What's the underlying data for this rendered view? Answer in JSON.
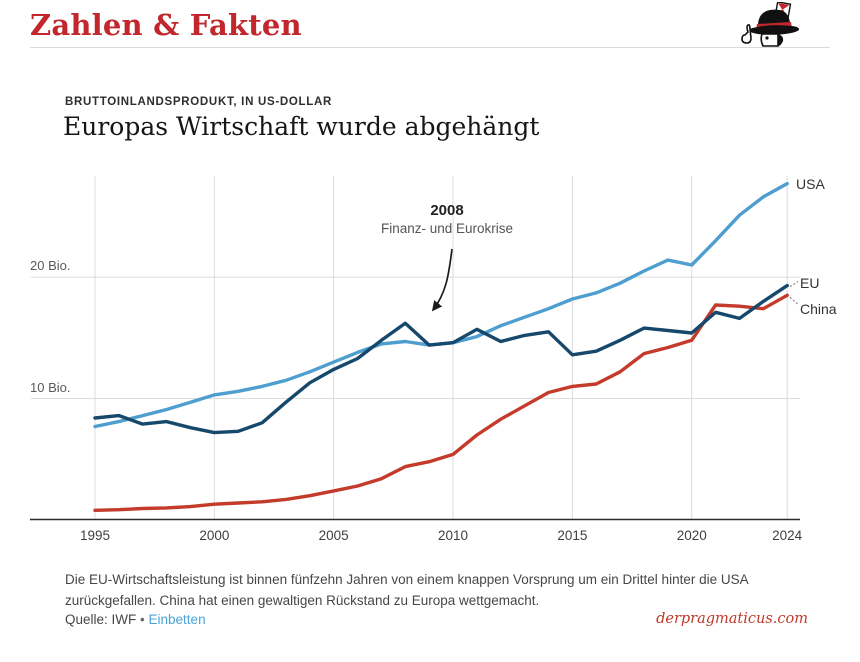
{
  "header": {
    "brand": "Zahlen & Fakten",
    "logo": "pragmaticus-mascot"
  },
  "chart": {
    "kicker": "BRUTTOINLANDSPRODUKT, IN US-DOLLAR",
    "title": "Europas Wirtschaft wurde abgehängt",
    "annotation": {
      "year": "2008",
      "text": "Finanz- und Eurokrise"
    }
  },
  "chart_data": {
    "type": "line",
    "title": "Europas Wirtschaft wurde abgehängt",
    "subtitle": "Bruttoinlandsprodukt, in US-Dollar",
    "unit": "Bio. US-Dollar",
    "x": [
      1995,
      1996,
      1997,
      1998,
      1999,
      2000,
      2001,
      2002,
      2003,
      2004,
      2005,
      2006,
      2007,
      2008,
      2009,
      2010,
      2011,
      2012,
      2013,
      2014,
      2015,
      2016,
      2017,
      2018,
      2019,
      2020,
      2021,
      2022,
      2023,
      2024
    ],
    "series": [
      {
        "name": "USA",
        "color": "#4E9FD0",
        "values": [
          7.7,
          8.1,
          8.6,
          9.1,
          9.7,
          10.3,
          10.6,
          11.0,
          11.5,
          12.2,
          13.0,
          13.8,
          14.5,
          14.7,
          14.4,
          14.6,
          15.1,
          16.0,
          16.7,
          17.4,
          18.2,
          18.7,
          19.5,
          20.5,
          21.4,
          21.0,
          23.0,
          25.1,
          26.6,
          27.7
        ]
      },
      {
        "name": "China",
        "color": "#C43A2B",
        "values": [
          0.8,
          0.85,
          0.95,
          1.0,
          1.1,
          1.3,
          1.4,
          1.5,
          1.7,
          2.0,
          2.4,
          2.8,
          3.4,
          4.4,
          4.8,
          5.4,
          7.0,
          8.3,
          9.4,
          10.5,
          11.0,
          11.2,
          12.2,
          13.7,
          14.2,
          14.8,
          17.7,
          17.6,
          17.4,
          18.5
        ]
      },
      {
        "name": "EU",
        "color": "#16486C",
        "values": [
          8.4,
          8.6,
          7.9,
          8.1,
          7.6,
          7.2,
          7.3,
          8.0,
          9.7,
          11.3,
          12.4,
          13.3,
          14.8,
          16.2,
          14.4,
          14.6,
          15.7,
          14.7,
          15.2,
          15.5,
          13.6,
          13.9,
          14.8,
          15.8,
          15.6,
          15.4,
          17.1,
          16.6,
          18.0,
          19.3
        ]
      }
    ],
    "ylim": [
      0,
      28.4
    ],
    "yticks": [
      {
        "value": 10,
        "label": "10 Bio."
      },
      {
        "value": 20,
        "label": "20 Bio."
      }
    ],
    "xticks": [
      1995,
      2000,
      2005,
      2010,
      2015,
      2020,
      2024
    ],
    "grid": "light gray, vertical at xticks, horizontal at yticks",
    "legend_position": "labels at line ends, right side",
    "annotation": {
      "title": "2008",
      "text": "Finanz- und Eurokrise",
      "points_to_series": "EU",
      "points_to_year": 2008
    }
  },
  "footer": {
    "note": "Die EU-Wirtschaftsleistung ist binnen fünfzehn Jahren von einem knappen Vorsprung um ein Drittel hinter die USA zurückgefallen. China hat einen gewaltigen Rückstand zu Europa wettgemacht.",
    "source_label": "Quelle: IWF",
    "separator": "•",
    "embed_link": "Einbetten",
    "site": "derpragmaticus.com"
  },
  "colors": {
    "brand_red": "#C1272D",
    "usa_line": "#4E9FD0",
    "eu_line": "#16486C",
    "china_line": "#C43A2B",
    "grid": "#dcdcdc",
    "axis": "#2b2b2b",
    "link_blue": "#4AA4D8",
    "site_red": "#C0392B"
  }
}
